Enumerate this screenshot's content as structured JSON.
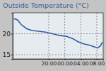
{
  "chart_data": {
    "type": "line",
    "title": "Outside Temperature (°C)",
    "x": [
      11.3,
      12.2,
      13.1,
      14.5,
      15.7,
      17.4,
      19.2,
      20.9,
      22.7,
      24.4,
      26.1,
      27.3,
      28.7,
      30.1,
      31.3,
      32.2,
      32.9,
      33.4
    ],
    "values": [
      23.6,
      23.3,
      22.2,
      21.2,
      20.8,
      20.6,
      20.4,
      20.0,
      19.6,
      19.4,
      18.8,
      18.1,
      17.6,
      17.3,
      16.9,
      16.6,
      17.1,
      18.0
    ],
    "color": "#2f5ea8",
    "xlim": [
      11,
      33.6
    ],
    "xticks": [
      {
        "value": 20,
        "label": "20:00"
      },
      {
        "value": 24,
        "label": "00:00"
      },
      {
        "value": 28,
        "label": "04:00"
      },
      {
        "value": 32,
        "label": "08:00"
      }
    ],
    "ylim": [
      14,
      25
    ],
    "yticks": [
      15,
      20
    ],
    "grid": true
  }
}
